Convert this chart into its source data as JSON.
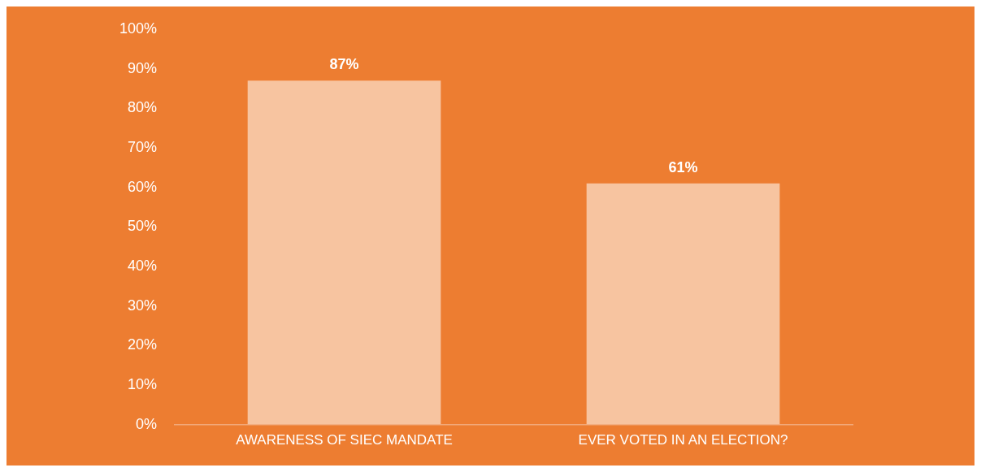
{
  "chart_data": {
    "type": "bar",
    "categories": [
      "AWARENESS OF SIEC MANDATE",
      "EVER VOTED IN AN ELECTION?"
    ],
    "values": [
      87,
      61
    ],
    "value_labels": [
      "87%",
      "61%"
    ],
    "color": "#f7c4a0",
    "ylim": [
      0,
      100
    ],
    "yticks": [
      {
        "value": 0,
        "label": "0%"
      },
      {
        "value": 10,
        "label": "10%"
      },
      {
        "value": 20,
        "label": "20%"
      },
      {
        "value": 30,
        "label": "30%"
      },
      {
        "value": 40,
        "label": "40%"
      },
      {
        "value": 50,
        "label": "50%"
      },
      {
        "value": 60,
        "label": "60%"
      },
      {
        "value": 70,
        "label": "70%"
      },
      {
        "value": 80,
        "label": "80%"
      },
      {
        "value": 90,
        "label": "90%"
      },
      {
        "value": 100,
        "label": "100%"
      }
    ],
    "grid": false,
    "legend": false
  }
}
